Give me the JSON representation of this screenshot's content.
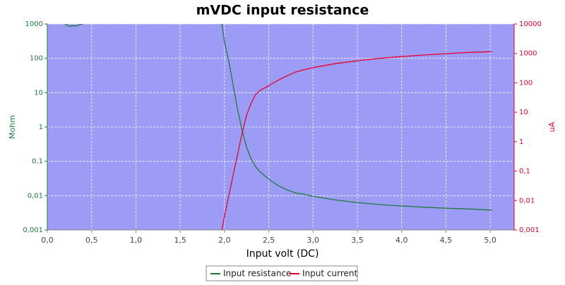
{
  "chart_data": {
    "type": "line",
    "title": "mVDC input resistance",
    "x_label": "Input volt (DC)",
    "y_label": "Mohm",
    "y2_label": "uA",
    "xlim": [
      0,
      5.27
    ],
    "xticks": [
      {
        "value": 0,
        "label": "0,0"
      },
      {
        "value": 0.5,
        "label": "0,5"
      },
      {
        "value": 1,
        "label": "1,0"
      },
      {
        "value": 1.5,
        "label": "1,5"
      },
      {
        "value": 2,
        "label": "2,0"
      },
      {
        "value": 2.5,
        "label": "2,5"
      },
      {
        "value": 3,
        "label": "3,0"
      },
      {
        "value": 3.5,
        "label": "3,5"
      },
      {
        "value": 4,
        "label": "4,0"
      },
      {
        "value": 4.5,
        "label": "4,5"
      },
      {
        "value": 5,
        "label": "5,0"
      }
    ],
    "ylim": [
      0.001,
      1000
    ],
    "ylog": true,
    "yticks": [
      {
        "value": 0.001,
        "label": "0,001"
      },
      {
        "value": 0.01,
        "label": "0,01"
      },
      {
        "value": 0.1,
        "label": "0,1"
      },
      1,
      10,
      100,
      1000
    ],
    "y2lim": [
      0.001,
      10000
    ],
    "y2log": true,
    "y2ticks": [
      {
        "value": 0.001,
        "label": "0,001"
      },
      {
        "value": 0.01,
        "label": "0,01"
      },
      {
        "value": 0.1,
        "label": "0,1"
      },
      1,
      10,
      100,
      1000,
      10000
    ],
    "grid": true,
    "legend": "bottom",
    "series": [
      {
        "name": "Input resistance",
        "color": "#1d7a3c",
        "axis": "y",
        "x": [
          0.2,
          0.23,
          0.26,
          0.29,
          0.32,
          0.36,
          0.4,
          1.0,
          1.97,
          2.0,
          2.05,
          2.1,
          2.15,
          2.2,
          2.25,
          2.3,
          2.35,
          2.4,
          2.5,
          2.6,
          2.7,
          2.8,
          2.9,
          3.0,
          3.25,
          3.5,
          3.75,
          4.0,
          4.25,
          4.5,
          4.75,
          5.02
        ],
        "values": [
          1000,
          900,
          850,
          900,
          870,
          950,
          1000,
          null,
          1000,
          300,
          80,
          15,
          3,
          0.8,
          0.25,
          0.12,
          0.07,
          0.05,
          0.03,
          0.02,
          0.015,
          0.012,
          0.011,
          0.0095,
          0.0075,
          0.0063,
          0.0055,
          0.005,
          0.0046,
          0.0043,
          0.0041,
          0.0038
        ]
      },
      {
        "name": "Input current",
        "color": "#e8002c",
        "axis": "y2",
        "x": [
          1.97,
          2.0,
          2.05,
          2.1,
          2.15,
          2.2,
          2.25,
          2.3,
          2.35,
          2.4,
          2.5,
          2.6,
          2.7,
          2.8,
          2.9,
          3.0,
          3.25,
          3.5,
          3.75,
          4.0,
          4.25,
          4.5,
          4.75,
          5.02
        ],
        "values": [
          0.001,
          0.003,
          0.015,
          0.08,
          0.4,
          2,
          8,
          20,
          40,
          55,
          80,
          120,
          170,
          230,
          280,
          330,
          450,
          560,
          680,
          780,
          880,
          980,
          1080,
          1150
        ]
      }
    ]
  }
}
